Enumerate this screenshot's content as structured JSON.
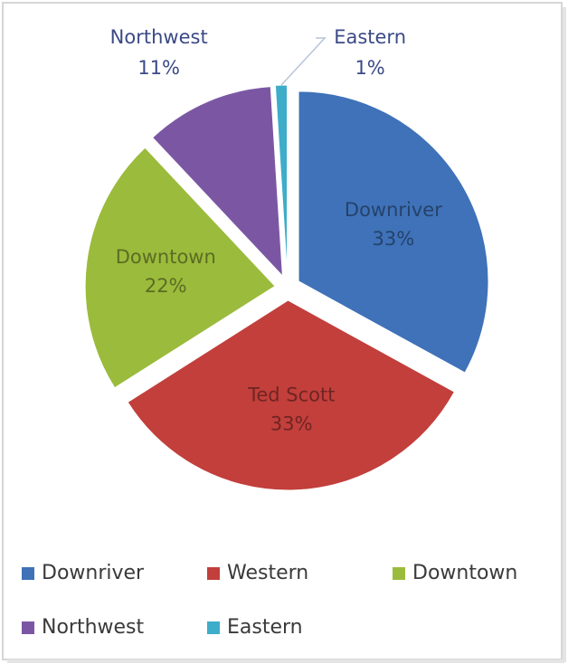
{
  "chart_data": {
    "type": "pie",
    "categories": [
      "Downriver",
      "Western",
      "Downtown",
      "Northwest",
      "Eastern"
    ],
    "slice_labels": [
      "Downriver",
      "Ted Scott",
      "Downtown",
      "Northwest",
      "Eastern"
    ],
    "values": [
      33,
      33,
      22,
      11,
      1
    ],
    "value_labels": [
      "33%",
      "33%",
      "22%",
      "11%",
      "1%"
    ],
    "colors": [
      "#3f72b8",
      "#c23f3b",
      "#9bbb3c",
      "#7b57a3",
      "#3eadc9"
    ],
    "legend": "bottom"
  }
}
